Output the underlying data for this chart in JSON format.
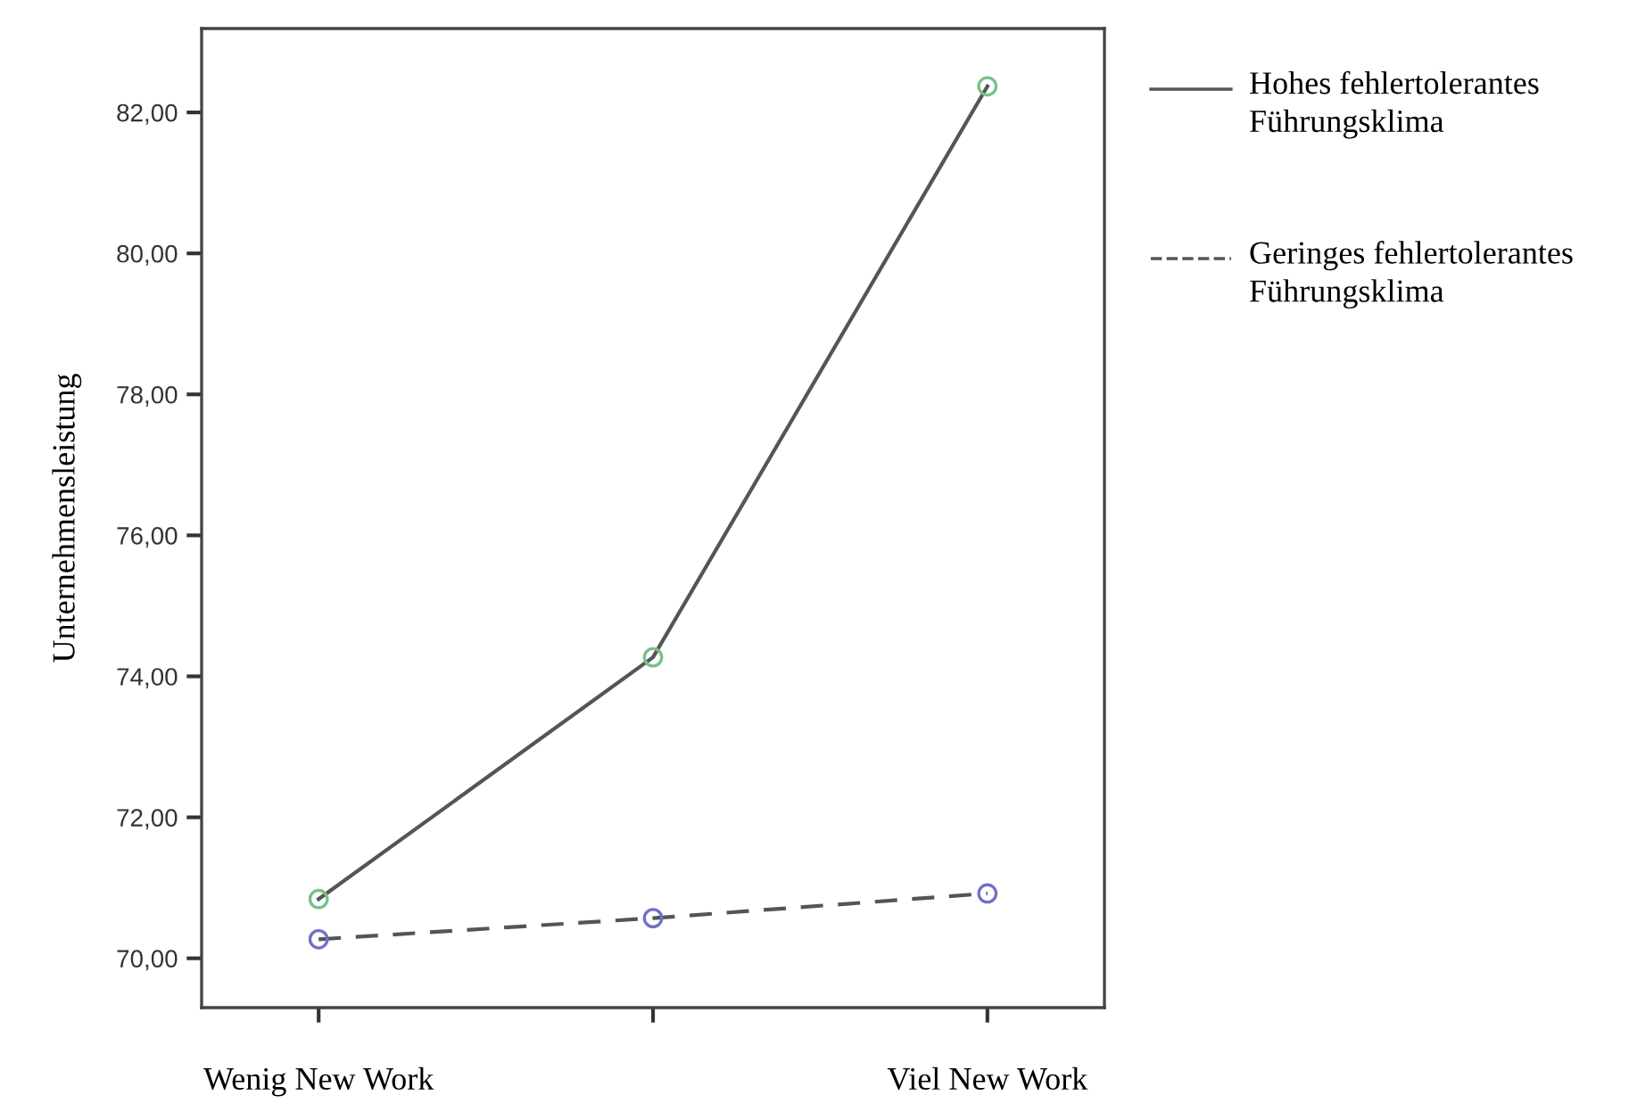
{
  "chart_data": {
    "type": "line",
    "ylabel": "Unternehmensleistung",
    "categories": [
      "Wenig New Work",
      null,
      "Viel New Work"
    ],
    "series": [
      {
        "name": "Hohes fehlertolerantes Führungsklima",
        "color": "#555555",
        "colors": [
          "#77c188",
          "#77c188",
          "#77c188"
        ],
        "line_style": "solid",
        "values": [
          70.84,
          74.27,
          82.37
        ]
      },
      {
        "name": "Geringes fehlertolerantes Führungsklima",
        "color": "#555555",
        "colors": [
          "#7070c8",
          "#7070c8",
          "#7070c8"
        ],
        "line_style": "dashed",
        "values": [
          70.27,
          70.57,
          70.92
        ]
      }
    ],
    "ylim": [
      69.3,
      83.19
    ],
    "yticks": [
      {
        "value": 70,
        "label": "70,00"
      },
      {
        "value": 72,
        "label": "72,00"
      },
      {
        "value": 74,
        "label": "74,00"
      },
      {
        "value": 76,
        "label": "76,00"
      },
      {
        "value": 78,
        "label": "78,00"
      },
      {
        "value": 80,
        "label": "80,00"
      },
      {
        "value": 82,
        "label": "82,00"
      }
    ],
    "marker": "circle",
    "grid": false,
    "legend": "right"
  }
}
